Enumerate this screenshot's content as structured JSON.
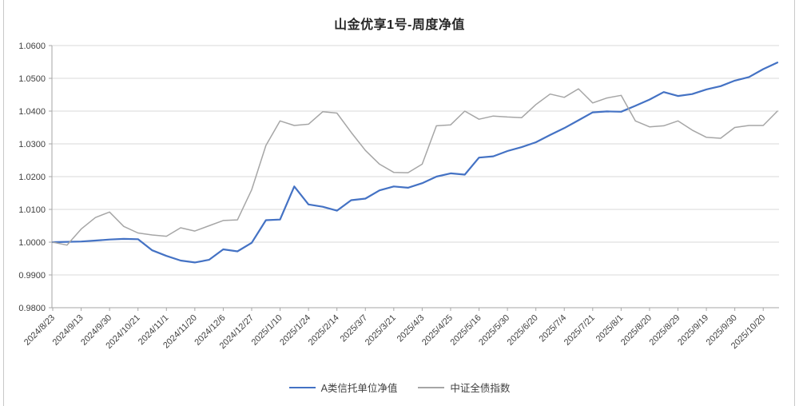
{
  "page": {
    "background": "#ffffff",
    "border_color": "#c9c9c9"
  },
  "chart_data": {
    "type": "line",
    "title": "山金优享1号-周度净值",
    "categories": [
      "2024/8/23",
      "2024/9/13",
      "2024/9/30",
      "2024/10/21",
      "2024/11/1",
      "2024/11/20",
      "2024/12/6",
      "2024/12/27",
      "2025/1/10",
      "2025/1/24",
      "2025/2/14",
      "2025/3/7",
      "2025/3/21",
      "2025/4/3",
      "2025/4/25",
      "2025/5/16",
      "2025/5/30",
      "2025/6/20",
      "2025/7/4",
      "2025/7/21",
      "2025/8/1",
      "2025/8/20",
      "2025/8/29",
      "2025/9/19",
      "2025/9/30",
      "2025/10/20"
    ],
    "label_interval": 2,
    "n_points": 52,
    "series": [
      {
        "name": "A类信托单位净值",
        "color": "#4472C4",
        "stroke_width": 2.2,
        "values": [
          1.0,
          1.0001,
          1.0002,
          1.0005,
          1.0008,
          1.001,
          1.0009,
          0.9975,
          0.9958,
          0.9944,
          0.9938,
          0.9946,
          0.9978,
          0.9972,
          0.9998,
          1.0067,
          1.0069,
          1.017,
          1.0115,
          1.0108,
          1.0096,
          1.0128,
          1.0133,
          1.0158,
          1.017,
          1.0166,
          1.018,
          1.02,
          1.021,
          1.0206,
          1.0258,
          1.0262,
          1.0278,
          1.029,
          1.0305,
          1.0327,
          1.0348,
          1.0372,
          1.0396,
          1.0399,
          1.0398,
          1.0416,
          1.0435,
          1.0458,
          1.0446,
          1.0452,
          1.0466,
          1.0476,
          1.0493,
          1.0504,
          1.0528,
          1.0548
        ]
      },
      {
        "name": "中证全债指数",
        "color": "#A6A6A6",
        "stroke_width": 1.5,
        "values": [
          1.0,
          0.9991,
          1.004,
          1.0075,
          1.0092,
          1.0048,
          1.0028,
          1.0022,
          1.0018,
          1.0044,
          1.0034,
          1.005,
          1.0066,
          1.0068,
          1.016,
          1.0295,
          1.037,
          1.0356,
          1.036,
          1.0398,
          1.0394,
          1.0335,
          1.028,
          1.0238,
          1.0213,
          1.0212,
          1.0238,
          1.0355,
          1.0358,
          1.04,
          1.0375,
          1.0385,
          1.0382,
          1.038,
          1.042,
          1.0452,
          1.0442,
          1.0468,
          1.0425,
          1.044,
          1.0448,
          1.037,
          1.0352,
          1.0355,
          1.037,
          1.0342,
          1.032,
          1.0317,
          1.035,
          1.0356,
          1.0356,
          1.04
        ]
      }
    ],
    "ylim": [
      0.98,
      1.06
    ],
    "ytick_step": 0.01,
    "yticks": [
      "0.9800",
      "0.9900",
      "1.0000",
      "1.0100",
      "1.0200",
      "1.0300",
      "1.0400",
      "1.0500",
      "1.0600"
    ],
    "grid": "horizontal",
    "legend_position": "bottom",
    "axis_color": "#a6a6a6",
    "grid_color": "#d9d9d9",
    "tick_label_color": "#404040",
    "tick_label_size": 11
  }
}
